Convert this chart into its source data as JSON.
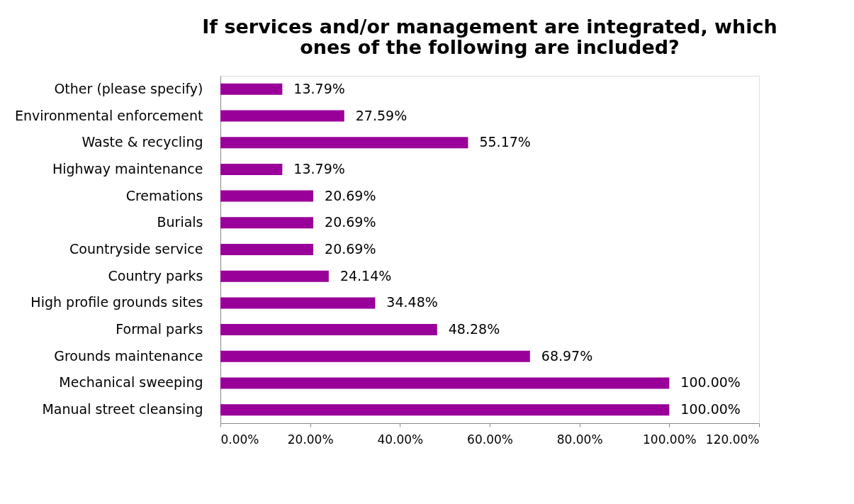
{
  "chart_data": {
    "type": "bar",
    "orientation": "horizontal",
    "title": [
      "If services and/or management are integrated, which",
      "ones of the following are included?"
    ],
    "categories": [
      "Other (please specify)",
      "Environmental enforcement",
      "Waste & recycling",
      "Highway maintenance",
      "Cremations",
      "Burials",
      "Countryside service",
      "Country parks",
      "High profile grounds sites",
      "Formal parks",
      "Grounds maintenance",
      "Mechanical sweeping",
      "Manual street cleansing"
    ],
    "values": [
      13.79,
      27.59,
      55.17,
      13.79,
      20.69,
      20.69,
      20.69,
      24.14,
      34.48,
      48.28,
      68.97,
      100,
      100
    ],
    "value_labels": [
      "13.79%",
      "27.59%",
      "55.17%",
      "13.79%",
      "20.69%",
      "20.69%",
      "20.69%",
      "24.14%",
      "34.48%",
      "48.28%",
      "68.97%",
      "100.00%",
      "100.00%"
    ],
    "color": "#990099",
    "xlim": [
      0,
      120
    ],
    "xticks": [
      {
        "value": 0,
        "label": "0.00%"
      },
      {
        "value": 20,
        "label": "20.00%"
      },
      {
        "value": 40,
        "label": "40.00%"
      },
      {
        "value": 60,
        "label": "60.00%"
      },
      {
        "value": 80,
        "label": "80.00%"
      },
      {
        "value": 100,
        "label": "100.00%"
      },
      {
        "value": 120,
        "label": "120.00%"
      }
    ],
    "grid": false
  }
}
